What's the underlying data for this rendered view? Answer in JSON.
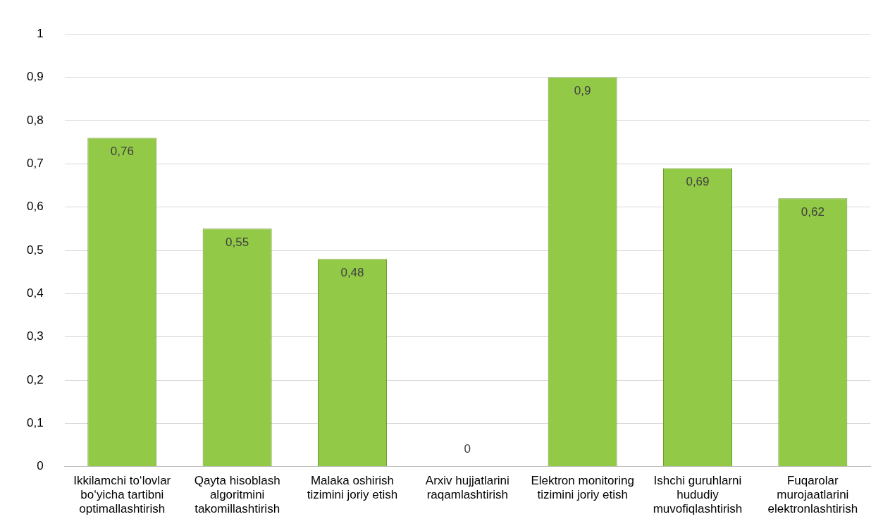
{
  "chart_data": {
    "type": "bar",
    "categories": [
      "Ikkilamchi to‘lovlar bo‘yicha tartibni optimallashtirish",
      "Qayta hisoblash algoritmini takomillashtirish",
      "Malaka oshirish tizimini joriy etish",
      "Arxiv hujjatlarini raqamlashtirish",
      "Elektron monitoring tizimini joriy etish",
      "Ishchi guruhlarni hududiy muvofiqlashtirish",
      "Fuqarolar murojaatlarini elektronlashtirish"
    ],
    "values": [
      0.76,
      0.55,
      0.48,
      0,
      0.9,
      0.69,
      0.62
    ],
    "value_labels": [
      "0,76",
      "0,55",
      "0,48",
      "0",
      "0,9",
      "0,69",
      "0,62"
    ],
    "color": "#92c947",
    "ylim": [
      0,
      1
    ],
    "yticks": [
      {
        "value": 0,
        "label": "0"
      },
      {
        "value": 0.1,
        "label": "0,1"
      },
      {
        "value": 0.2,
        "label": "0,2"
      },
      {
        "value": 0.3,
        "label": "0,3"
      },
      {
        "value": 0.4,
        "label": "0,4"
      },
      {
        "value": 0.5,
        "label": "0,5"
      },
      {
        "value": 0.6,
        "label": "0,6"
      },
      {
        "value": 0.7,
        "label": "0,7"
      },
      {
        "value": 0.8,
        "label": "0,8"
      },
      {
        "value": 0.9,
        "label": "0,9"
      },
      {
        "value": 1,
        "label": "1"
      }
    ],
    "grid": "y",
    "legend": false
  }
}
